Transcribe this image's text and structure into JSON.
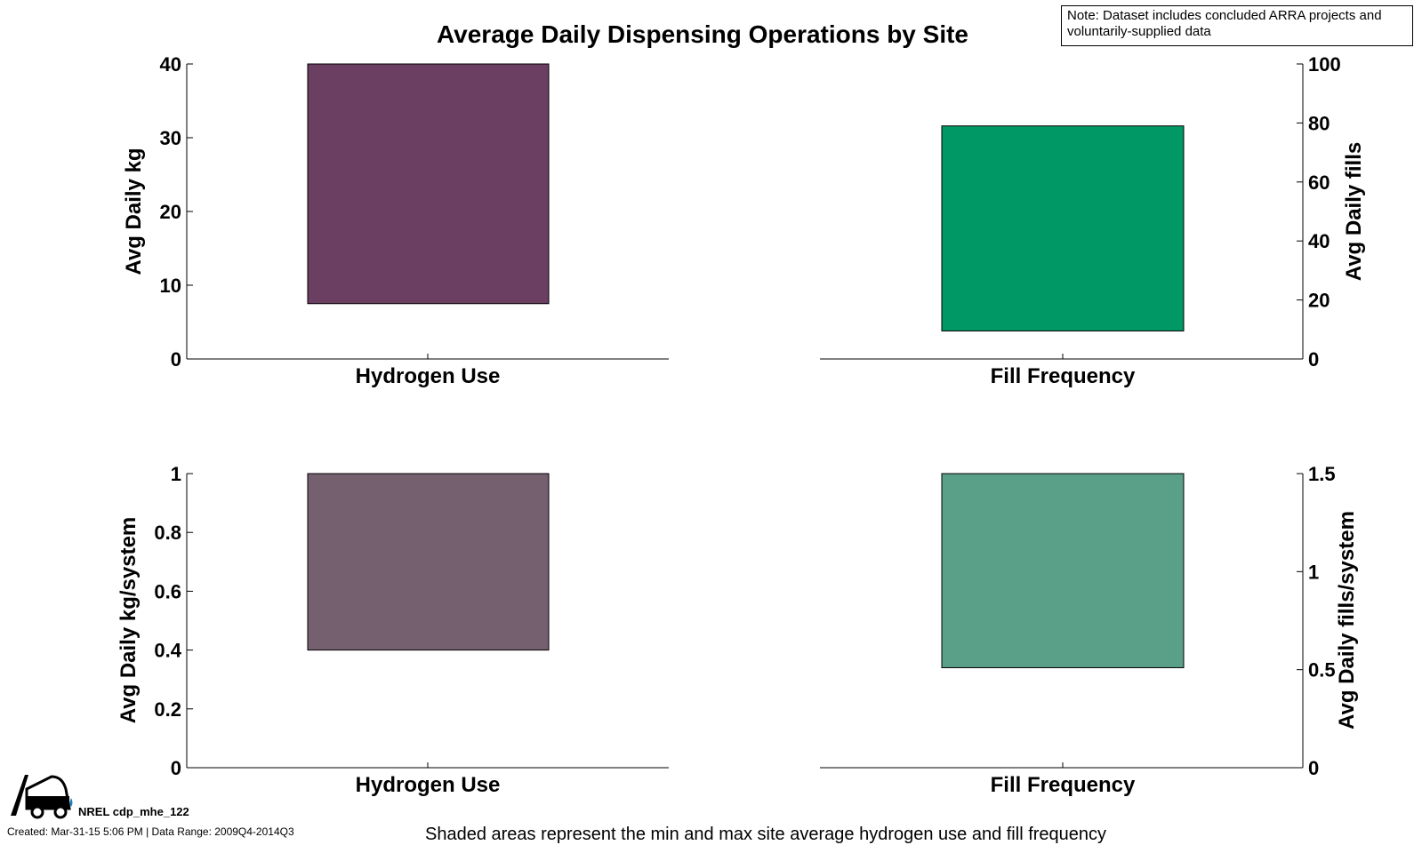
{
  "title": "Average Daily Dispensing Operations by Site",
  "note": "Note: Dataset includes concluded ARRA projects and voluntarily-supplied data",
  "footer": {
    "caption": "Shaded areas represent the min and max site average hydrogen use and fill frequency",
    "id": "NREL cdp_mhe_122",
    "created": "Created: Mar-31-15  5:06 PM | Data Range: 2009Q4-2014Q3"
  },
  "logo_icon": "forklift-icon",
  "chart_data": [
    {
      "type": "bar",
      "panel": "top-left",
      "categories": [
        "Hydrogen Use"
      ],
      "ylabel": "Avg Daily kg",
      "axis_side": "left",
      "ylim": [
        0,
        40
      ],
      "yticks": [
        "0",
        "10",
        "20",
        "30",
        "40"
      ],
      "range": {
        "min": 7.5,
        "max": 40
      },
      "color": "#6b3f62"
    },
    {
      "type": "bar",
      "panel": "top-right",
      "categories": [
        "Fill Frequency"
      ],
      "ylabel": "Avg Daily fills",
      "axis_side": "right",
      "ylim": [
        0,
        100
      ],
      "yticks": [
        "0",
        "20",
        "40",
        "60",
        "80",
        "100"
      ],
      "range": {
        "min": 9.5,
        "max": 79
      },
      "color": "#009966"
    },
    {
      "type": "bar",
      "panel": "bottom-left",
      "categories": [
        "Hydrogen Use"
      ],
      "ylabel": "Avg Daily kg/system",
      "axis_side": "left",
      "ylim": [
        0,
        1
      ],
      "yticks": [
        "0",
        "0.2",
        "0.4",
        "0.6",
        "0.8",
        "1"
      ],
      "range": {
        "min": 0.4,
        "max": 1.0
      },
      "color": "#75606f"
    },
    {
      "type": "bar",
      "panel": "bottom-right",
      "categories": [
        "Fill Frequency"
      ],
      "ylabel": "Avg Daily fills/system",
      "axis_side": "right",
      "ylim": [
        0,
        1.5
      ],
      "yticks": [
        "0",
        "0.5",
        "1",
        "1.5"
      ],
      "range": {
        "min": 0.51,
        "max": 1.5
      },
      "color": "#5aa088"
    }
  ]
}
